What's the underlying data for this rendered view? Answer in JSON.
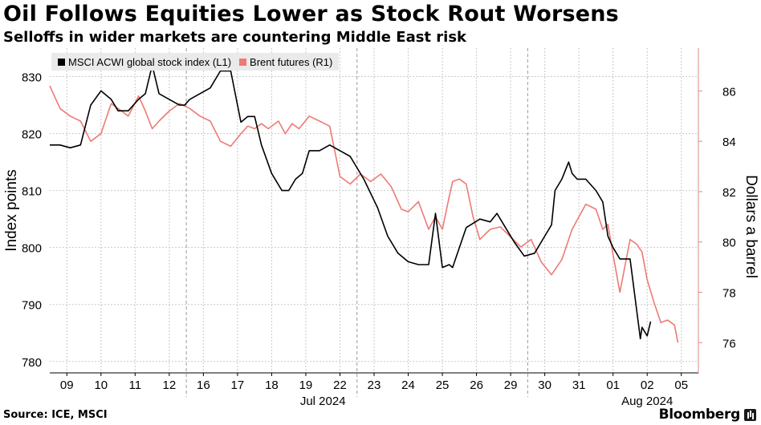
{
  "title": "Oil Follows Equities Lower as Stock Rout Worsens",
  "subtitle": "Selloffs in wider markets are countering Middle East risk",
  "footer": {
    "source": "Source: ICE, MSCI",
    "brand": "Bloomberg"
  },
  "colors": {
    "equity": "#000000",
    "oil": "#ee7a73",
    "grid": "#c9c9c9",
    "axis_right": "#e08a85"
  },
  "chart_data": {
    "type": "line",
    "title": "Oil Follows Equities Lower as Stock Rout Worsens",
    "subtitle": "Selloffs in wider markets are countering Middle East risk",
    "ylabel_left": "Index points",
    "ylabel_right": "Dollars a barrel",
    "ylim_left": [
      778,
      835
    ],
    "ylim_right": [
      74.8,
      87.7
    ],
    "yticks_left": [
      780,
      790,
      800,
      810,
      820,
      830
    ],
    "yticks_right": [
      76,
      78,
      80,
      82,
      84,
      86
    ],
    "x_range": [
      0,
      19
    ],
    "x_ticks": [
      {
        "x": 0.5,
        "label": "09"
      },
      {
        "x": 1.5,
        "label": "10"
      },
      {
        "x": 2.5,
        "label": "11"
      },
      {
        "x": 3.5,
        "label": "12"
      },
      {
        "x": 4.5,
        "label": "16"
      },
      {
        "x": 5.5,
        "label": "17"
      },
      {
        "x": 6.5,
        "label": "18"
      },
      {
        "x": 7.5,
        "label": "19"
      },
      {
        "x": 8.5,
        "label": "22"
      },
      {
        "x": 9.5,
        "label": "23"
      },
      {
        "x": 10.5,
        "label": "24"
      },
      {
        "x": 11.5,
        "label": "25"
      },
      {
        "x": 12.5,
        "label": "26"
      },
      {
        "x": 13.5,
        "label": "29"
      },
      {
        "x": 14.5,
        "label": "30"
      },
      {
        "x": 15.5,
        "label": "31"
      },
      {
        "x": 16.5,
        "label": "01"
      },
      {
        "x": 17.5,
        "label": "02"
      },
      {
        "x": 18.5,
        "label": "05"
      }
    ],
    "week_boundaries": [
      4,
      9,
      14
    ],
    "month_labels": [
      {
        "x": 8.0,
        "label": "Jul 2024"
      },
      {
        "x": 17.5,
        "label": "Aug 2024"
      }
    ],
    "legend_position": "top-left",
    "grid": true,
    "series": [
      {
        "name": "MSCI ACWI global stock index (L1)",
        "axis": "left",
        "color": "#000000",
        "x": [
          0.0,
          0.3,
          0.6,
          0.9,
          1.2,
          1.5,
          1.8,
          2.0,
          2.3,
          2.6,
          2.8,
          3.0,
          3.2,
          3.5,
          3.8,
          3.95,
          4.1,
          4.4,
          4.7,
          5.0,
          5.3,
          5.6,
          5.8,
          6.0,
          6.2,
          6.5,
          6.8,
          7.0,
          7.2,
          7.4,
          7.6,
          7.9,
          8.2,
          8.5,
          8.8,
          9.2,
          9.6,
          9.9,
          10.2,
          10.5,
          10.8,
          11.1,
          11.3,
          11.5,
          11.7,
          11.8,
          12.2,
          12.6,
          12.9,
          13.1,
          13.3,
          13.6,
          13.9,
          14.2,
          14.5,
          14.7,
          14.8,
          15.0,
          15.2,
          15.3,
          15.45,
          15.7,
          16.0,
          16.2,
          16.35,
          16.5,
          16.7,
          17.0,
          17.3,
          17.35,
          17.5,
          17.6
        ],
        "values": [
          818,
          818,
          817.5,
          818,
          825,
          827.5,
          826,
          824,
          824,
          826,
          827,
          832,
          827,
          826,
          825,
          825,
          826,
          827,
          828,
          831,
          831,
          822,
          823,
          823,
          818,
          813,
          810,
          810,
          812,
          813,
          817,
          817,
          818,
          817,
          816,
          812,
          807,
          802,
          799,
          797.5,
          797,
          797,
          806,
          796.5,
          797,
          796.5,
          803.5,
          805,
          804.5,
          806,
          804,
          801,
          798.5,
          799,
          802,
          804,
          810,
          812,
          815,
          813,
          812,
          812,
          810,
          808,
          802,
          800,
          798,
          798,
          784,
          786,
          784.5,
          787
        ]
      },
      {
        "name": "Brent futures (R1)",
        "axis": "right",
        "color": "#ee7a73",
        "x": [
          0.0,
          0.3,
          0.6,
          0.9,
          1.2,
          1.5,
          1.8,
          2.0,
          2.3,
          2.6,
          2.8,
          3.0,
          3.2,
          3.5,
          3.8,
          4.1,
          4.4,
          4.7,
          5.0,
          5.3,
          5.6,
          5.8,
          6.0,
          6.2,
          6.4,
          6.7,
          6.9,
          7.1,
          7.3,
          7.6,
          7.9,
          8.2,
          8.5,
          8.8,
          9.1,
          9.4,
          9.7,
          10.0,
          10.3,
          10.5,
          10.8,
          11.1,
          11.3,
          11.5,
          11.7,
          11.8,
          12.0,
          12.2,
          12.4,
          12.6,
          12.9,
          13.2,
          13.5,
          13.8,
          14.1,
          14.4,
          14.7,
          15.0,
          15.3,
          15.5,
          15.7,
          16.0,
          16.2,
          16.35,
          16.5,
          16.7,
          17.0,
          17.2,
          17.35,
          17.5,
          17.7,
          17.9,
          18.1,
          18.3,
          18.4
        ],
        "values": [
          86.2,
          85.3,
          85.0,
          84.8,
          84.0,
          84.3,
          85.5,
          85.3,
          85.0,
          85.8,
          85.2,
          84.5,
          84.8,
          85.2,
          85.5,
          85.3,
          85.0,
          84.8,
          84.0,
          83.8,
          84.3,
          84.6,
          84.5,
          84.7,
          84.5,
          84.8,
          84.3,
          84.7,
          84.5,
          85.0,
          84.8,
          84.6,
          82.6,
          82.3,
          82.7,
          82.4,
          82.7,
          82.2,
          81.3,
          81.2,
          81.6,
          80.5,
          81.0,
          80.5,
          81.8,
          82.4,
          82.5,
          82.3,
          81.0,
          80.1,
          80.5,
          80.6,
          80.2,
          79.8,
          80.1,
          79.2,
          78.7,
          79.3,
          80.5,
          81.0,
          81.5,
          81.3,
          80.5,
          80.7,
          79.5,
          78.0,
          80.1,
          79.9,
          79.6,
          78.5,
          77.6,
          76.8,
          76.9,
          76.7,
          76.0
        ]
      }
    ]
  }
}
